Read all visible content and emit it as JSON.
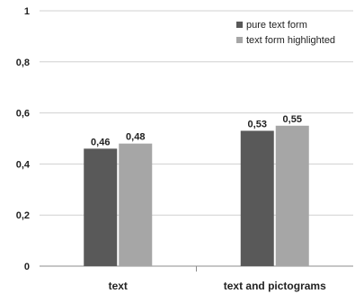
{
  "chart_data": {
    "type": "bar",
    "title": "",
    "xlabel": "",
    "ylabel": "",
    "categories": [
      "text",
      "text and pictograms"
    ],
    "series": [
      {
        "name": "pure text form",
        "values": [
          0.46,
          0.53
        ],
        "color": "#595959"
      },
      {
        "name": "text form highlighted",
        "values": [
          0.48,
          0.55
        ],
        "color": "#a6a6a6"
      }
    ],
    "data_labels": [
      [
        "0,46",
        "0,53"
      ],
      [
        "0,48",
        "0,55"
      ]
    ],
    "ylim": [
      0,
      1
    ],
    "yticks": [
      0,
      0.2,
      0.4,
      0.6,
      0.8,
      1
    ],
    "ytick_labels": [
      "0",
      "0,2",
      "0,4",
      "0,6",
      "0,8",
      "1"
    ],
    "grid": true,
    "legend_position": "top-right"
  }
}
